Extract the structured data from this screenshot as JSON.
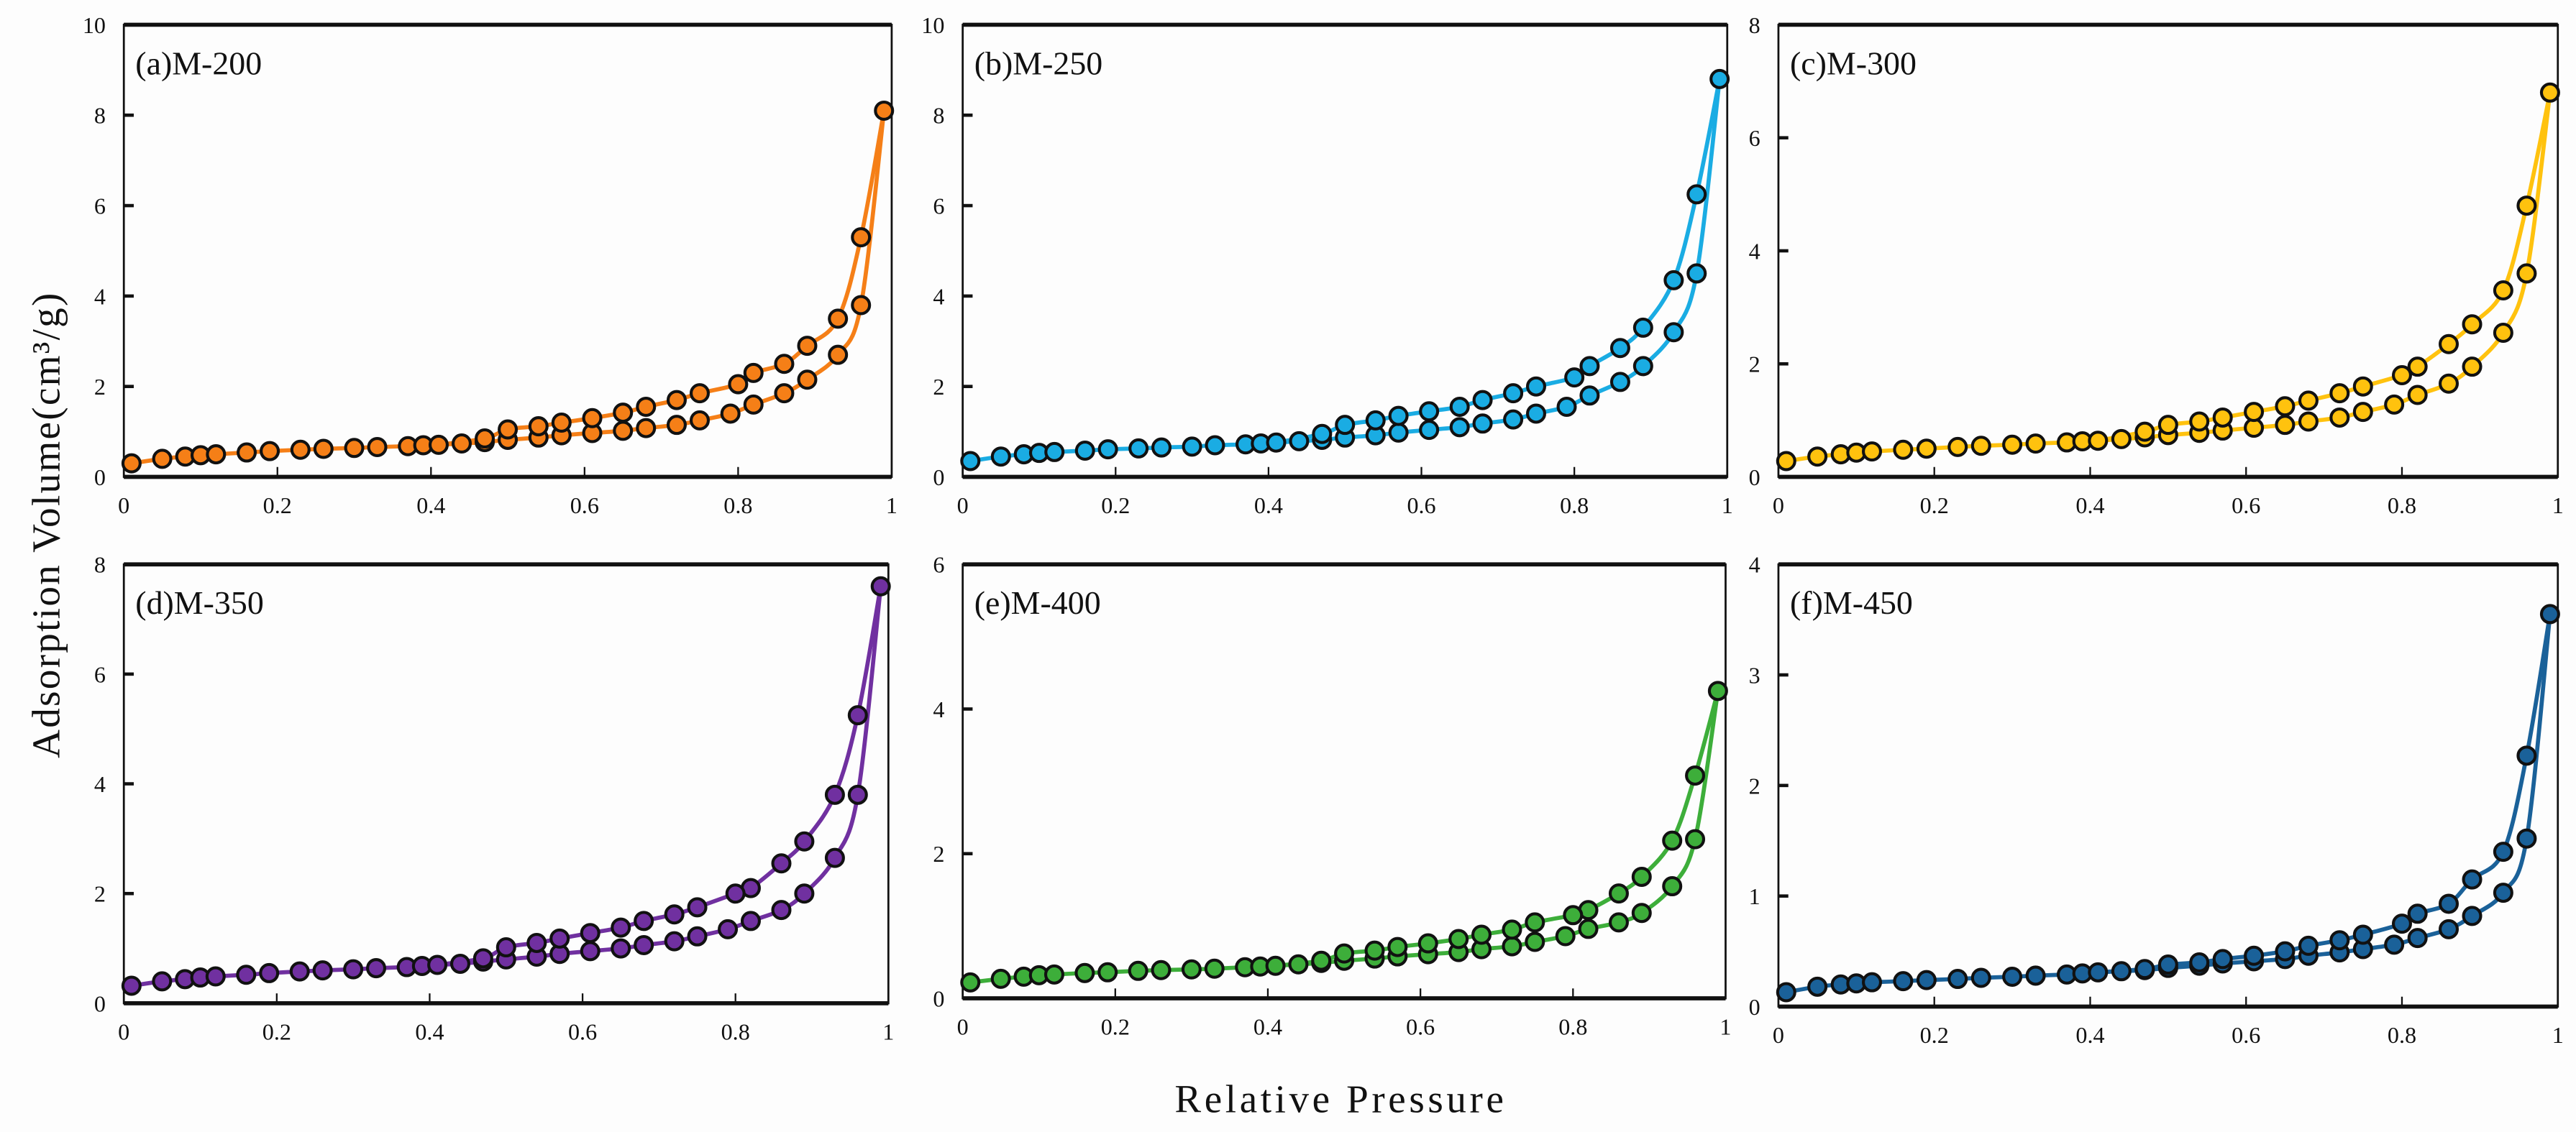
{
  "chart_data": {
    "type": "scatter",
    "xlabel": "Relative Pressure",
    "ylabel": "Adsorption  Volume(cm³/g)",
    "xlim": [
      0,
      1
    ],
    "xticks": [
      "0",
      "0.2",
      "0.4",
      "0.6",
      "0.8",
      "1"
    ],
    "adsorption_x": [
      0.01,
      0.05,
      0.08,
      0.1,
      0.12,
      0.16,
      0.19,
      0.23,
      0.26,
      0.3,
      0.33,
      0.37,
      0.39,
      0.41,
      0.44,
      0.47,
      0.5,
      0.54,
      0.57,
      0.61,
      0.65,
      0.68,
      0.72,
      0.75,
      0.79,
      0.82,
      0.86,
      0.89,
      0.93,
      0.96,
      0.99
    ],
    "desorption_x": [
      0.96,
      0.93,
      0.89,
      0.86,
      0.82,
      0.8,
      0.75,
      0.72,
      0.68,
      0.65,
      0.61,
      0.57,
      0.54,
      0.5,
      0.47
    ],
    "panels": [
      {
        "title": "(a)M-200",
        "color": "#F57F17",
        "ylim": [
          0,
          10
        ],
        "yticks": [
          "0",
          "2",
          "4",
          "6",
          "8",
          "10"
        ],
        "adsorption": [
          0.3,
          0.4,
          0.45,
          0.48,
          0.5,
          0.54,
          0.57,
          0.6,
          0.62,
          0.64,
          0.66,
          0.68,
          0.7,
          0.71,
          0.74,
          0.77,
          0.82,
          0.87,
          0.92,
          0.97,
          1.02,
          1.08,
          1.15,
          1.25,
          1.4,
          1.6,
          1.85,
          2.15,
          2.7,
          3.8,
          8.1
        ],
        "desorption": [
          5.3,
          3.5,
          2.9,
          2.5,
          2.3,
          2.05,
          1.85,
          1.7,
          1.55,
          1.42,
          1.3,
          1.2,
          1.12,
          1.05,
          0.85
        ]
      },
      {
        "title": "(b)M-250",
        "color": "#1AACE3",
        "ylim": [
          0,
          10
        ],
        "yticks": [
          "0",
          "2",
          "4",
          "6",
          "8",
          "10"
        ],
        "adsorption": [
          0.35,
          0.45,
          0.5,
          0.53,
          0.55,
          0.58,
          0.61,
          0.63,
          0.65,
          0.67,
          0.7,
          0.72,
          0.74,
          0.76,
          0.79,
          0.82,
          0.87,
          0.92,
          0.98,
          1.04,
          1.1,
          1.18,
          1.27,
          1.4,
          1.55,
          1.8,
          2.1,
          2.45,
          3.2,
          4.5,
          8.8
        ],
        "desorption": [
          6.25,
          4.35,
          3.3,
          2.85,
          2.45,
          2.2,
          2.0,
          1.85,
          1.7,
          1.55,
          1.45,
          1.35,
          1.25,
          1.15,
          0.95
        ]
      },
      {
        "title": "(c)M-300",
        "color": "#FFC20E",
        "ylim": [
          0,
          8
        ],
        "yticks": [
          "0",
          "2",
          "4",
          "6",
          "8"
        ],
        "adsorption": [
          0.28,
          0.36,
          0.4,
          0.43,
          0.45,
          0.48,
          0.5,
          0.53,
          0.55,
          0.57,
          0.59,
          0.61,
          0.63,
          0.64,
          0.67,
          0.7,
          0.74,
          0.78,
          0.82,
          0.87,
          0.92,
          0.98,
          1.05,
          1.15,
          1.28,
          1.45,
          1.65,
          1.95,
          2.55,
          3.6,
          6.8
        ],
        "desorption": [
          4.8,
          3.3,
          2.7,
          2.35,
          1.95,
          1.8,
          1.6,
          1.48,
          1.35,
          1.25,
          1.15,
          1.05,
          0.98,
          0.92,
          0.8
        ]
      },
      {
        "title": "(d)M-350",
        "color": "#7030A0",
        "ylim": [
          0,
          8
        ],
        "yticks": [
          "0",
          "2",
          "4",
          "6",
          "8"
        ],
        "adsorption": [
          0.32,
          0.4,
          0.44,
          0.47,
          0.49,
          0.52,
          0.55,
          0.58,
          0.6,
          0.62,
          0.64,
          0.66,
          0.68,
          0.7,
          0.72,
          0.76,
          0.8,
          0.85,
          0.9,
          0.95,
          1.0,
          1.06,
          1.13,
          1.22,
          1.35,
          1.5,
          1.7,
          2.0,
          2.65,
          3.8,
          7.6
        ],
        "desorption": [
          5.25,
          3.8,
          2.95,
          2.55,
          2.1,
          2.0,
          1.75,
          1.62,
          1.5,
          1.38,
          1.28,
          1.18,
          1.1,
          1.02,
          0.82
        ]
      },
      {
        "title": "(e)M-400",
        "color": "#3DAE3A",
        "ylim": [
          0,
          6
        ],
        "yticks": [
          "0",
          "2",
          "4",
          "6"
        ],
        "adsorption": [
          0.22,
          0.27,
          0.3,
          0.32,
          0.33,
          0.35,
          0.36,
          0.38,
          0.39,
          0.4,
          0.41,
          0.43,
          0.44,
          0.45,
          0.47,
          0.49,
          0.52,
          0.55,
          0.58,
          0.61,
          0.64,
          0.68,
          0.72,
          0.78,
          0.86,
          0.96,
          1.05,
          1.18,
          1.55,
          2.2,
          4.25
        ],
        "desorption": [
          3.08,
          2.18,
          1.68,
          1.45,
          1.22,
          1.15,
          1.05,
          0.95,
          0.88,
          0.82,
          0.76,
          0.71,
          0.66,
          0.62,
          0.52
        ]
      },
      {
        "title": "(f)M-450",
        "color": "#1A6199",
        "ylim": [
          0,
          4
        ],
        "yticks": [
          "0",
          "1",
          "2",
          "3",
          "4"
        ],
        "adsorption": [
          0.13,
          0.18,
          0.2,
          0.21,
          0.22,
          0.23,
          0.24,
          0.25,
          0.26,
          0.27,
          0.28,
          0.29,
          0.3,
          0.31,
          0.32,
          0.33,
          0.35,
          0.37,
          0.39,
          0.41,
          0.43,
          0.46,
          0.49,
          0.52,
          0.56,
          0.62,
          0.7,
          0.82,
          1.03,
          1.52,
          3.55
        ],
        "desorption": [
          2.27,
          1.4,
          1.15,
          0.93,
          0.84,
          0.75,
          0.65,
          0.6,
          0.55,
          0.5,
          0.46,
          0.43,
          0.4,
          0.38,
          0.34
        ]
      }
    ]
  }
}
